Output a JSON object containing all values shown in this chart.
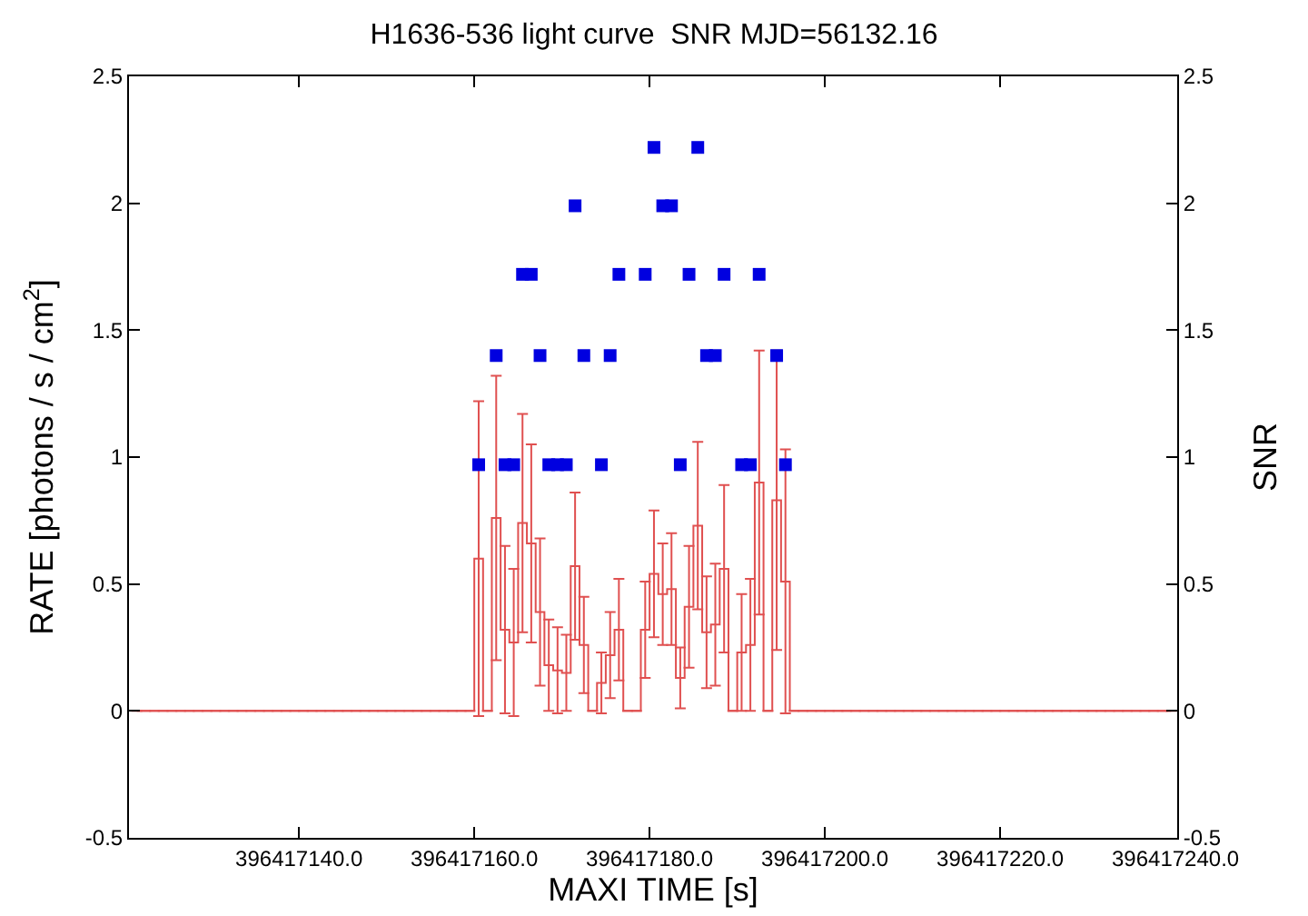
{
  "chart_data": {
    "type": "step",
    "title": "H1636-536 light curve  SNR MJD=56132.16",
    "xlabel": "MAXI TIME [s]",
    "ylabel": "RATE [photons / s / cm$^{2}$]",
    "y2label": "SNR",
    "x": [
      396417121.5,
      396417122.5,
      396417123.5,
      396417124.5,
      396417125.5,
      396417126.5,
      396417127.5,
      396417128.5,
      396417129.5,
      396417130.5,
      396417131.5,
      396417132.5,
      396417133.5,
      396417134.5,
      396417135.5,
      396417136.5,
      396417137.5,
      396417138.5,
      396417139.5,
      396417140.5,
      396417141.5,
      396417142.5,
      396417143.5,
      396417144.5,
      396417145.5,
      396417146.5,
      396417147.5,
      396417148.5,
      396417149.5,
      396417150.5,
      396417151.5,
      396417152.5,
      396417153.5,
      396417154.5,
      396417155.5,
      396417156.5,
      396417157.5,
      396417158.5,
      396417159.5,
      396417160.5,
      396417161.5,
      396417162.5,
      396417163.5,
      396417164.5,
      396417165.5,
      396417166.5,
      396417167.5,
      396417168.5,
      396417169.5,
      396417170.5,
      396417171.5,
      396417172.5,
      396417173.5,
      396417174.5,
      396417175.5,
      396417176.5,
      396417177.5,
      396417178.5,
      396417179.5,
      396417180.5,
      396417181.5,
      396417182.5,
      396417183.5,
      396417184.5,
      396417185.5,
      396417186.5,
      396417187.5,
      396417188.5,
      396417189.5,
      396417190.5,
      396417191.5,
      396417192.5,
      396417193.5,
      396417194.5,
      396417195.5,
      396417196.5,
      396417197.5,
      396417198.5,
      396417199.5,
      396417200.5,
      396417201.5,
      396417202.5,
      396417203.5,
      396417204.5,
      396417205.5,
      396417206.5,
      396417207.5,
      396417208.5,
      396417209.5,
      396417210.5,
      396417211.5,
      396417212.5,
      396417213.5,
      396417214.5,
      396417215.5,
      396417216.5,
      396417217.5,
      396417218.5,
      396417219.5,
      396417220.5,
      396417221.5,
      396417222.5,
      396417223.5,
      396417224.5,
      396417225.5,
      396417226.5,
      396417227.5,
      396417228.5,
      396417229.5,
      396417230.5,
      396417231.5,
      396417232.5,
      396417233.5,
      396417234.5,
      396417235.5,
      396417236.5,
      396417237.5,
      396417238.5,
      396417239.5
    ],
    "series": [
      {
        "color": "#e05050",
        "values": [
          0,
          0,
          0,
          0,
          0,
          0,
          0,
          0,
          0,
          0,
          0,
          0,
          0,
          0,
          0,
          0,
          0,
          0,
          0,
          0,
          0,
          0,
          0,
          0,
          0,
          0,
          0,
          0,
          0,
          0,
          0,
          0,
          0,
          0,
          0,
          0,
          0,
          0,
          0,
          0.6,
          0,
          0.76,
          0.32,
          0.27,
          0.74,
          0.66,
          0.39,
          0.18,
          0.16,
          0.15,
          0.57,
          0.26,
          0,
          0.11,
          0.22,
          0.32,
          0,
          0,
          0.32,
          0.54,
          0.46,
          0.48,
          0.13,
          0.41,
          0.73,
          0.31,
          0.34,
          0.56,
          0,
          0.23,
          0.26,
          0.9,
          0,
          0.83,
          0.51,
          0,
          0,
          0,
          0,
          0,
          0,
          0,
          0,
          0,
          0,
          0,
          0,
          0,
          0,
          0,
          0,
          0,
          0,
          0,
          0,
          0,
          0,
          0,
          0,
          0,
          0,
          0,
          0,
          0,
          0,
          0,
          0,
          0,
          0,
          0,
          0,
          0,
          0,
          0,
          0,
          0,
          0,
          0,
          0
        ],
        "errors": [
          null,
          null,
          null,
          null,
          null,
          null,
          null,
          null,
          null,
          null,
          null,
          null,
          null,
          null,
          null,
          null,
          null,
          null,
          null,
          null,
          null,
          null,
          null,
          null,
          null,
          null,
          null,
          null,
          null,
          null,
          null,
          null,
          null,
          null,
          null,
          null,
          null,
          null,
          null,
          0.62,
          null,
          0.56,
          0.33,
          0.29,
          0.43,
          0.39,
          0.29,
          0.18,
          0.17,
          0.15,
          0.29,
          0.19,
          null,
          0.12,
          0.17,
          0.2,
          null,
          null,
          0.19,
          0.25,
          0.2,
          0.22,
          0.12,
          0.24,
          0.33,
          0.22,
          0.24,
          0.33,
          null,
          0.23,
          0.26,
          0.52,
          null,
          0.59,
          0.52,
          null,
          null,
          null,
          null,
          null,
          null,
          null,
          null,
          null,
          null,
          null,
          null,
          null,
          null,
          null,
          null,
          null,
          null,
          null,
          null,
          null,
          null,
          null,
          null,
          null,
          null,
          null,
          null,
          null,
          null,
          null,
          null,
          null,
          null,
          null,
          null,
          null,
          null,
          null,
          null,
          null,
          null,
          null,
          null
        ]
      },
      {
        "type": "scatter",
        "axis": "y2",
        "color": "#0000e0",
        "marker": "square",
        "x": [
          396417160.5,
          396417161.5,
          396417162.5,
          396417163.5,
          396417164.5,
          396417165.5,
          396417166.5,
          396417167.5,
          396417168.5,
          396417169.5,
          396417170.5,
          396417171.5,
          396417172.5,
          396417173.5,
          396417174.5,
          396417175.5,
          396417176.5,
          396417177.5,
          396417178.5,
          396417179.5,
          396417180.5,
          396417181.5,
          396417182.5,
          396417183.5,
          396417184.5,
          396417185.5,
          396417186.5,
          396417187.5,
          396417188.5,
          396417189.5,
          396417190.5,
          396417191.5,
          396417192.5,
          396417193.5,
          396417194.5,
          396417195.5
        ],
        "values": [
          0.97,
          null,
          1.4,
          0.97,
          0.97,
          1.72,
          1.72,
          1.4,
          0.97,
          0.97,
          0.97,
          1.99,
          1.4,
          null,
          0.97,
          1.4,
          1.72,
          null,
          null,
          1.72,
          2.22,
          1.99,
          1.99,
          0.97,
          1.72,
          2.22,
          1.4,
          1.4,
          1.72,
          null,
          0.97,
          0.97,
          1.72,
          null,
          1.4,
          0.97
        ]
      }
    ],
    "xlim": [
      396417120.6,
      396417240.2
    ],
    "xticks": [
      {
        "value": 396417140,
        "label": "396417140.0"
      },
      {
        "value": 396417160,
        "label": "396417160.0"
      },
      {
        "value": 396417180,
        "label": "396417180.0"
      },
      {
        "value": 396417200,
        "label": "396417200.0"
      },
      {
        "value": 396417220,
        "label": "396417220.0"
      },
      {
        "value": 396417240,
        "label": "396417240.0"
      }
    ],
    "ylim": [
      -0.5,
      2.5
    ],
    "yticks": [
      -0.5,
      0,
      0.5,
      1,
      1.5,
      2,
      2.5
    ],
    "y2lim": [
      -0.5,
      2.5
    ],
    "y2ticks": [
      -0.5,
      0,
      0.5,
      1,
      1.5,
      2,
      2.5
    ],
    "grid": false
  }
}
